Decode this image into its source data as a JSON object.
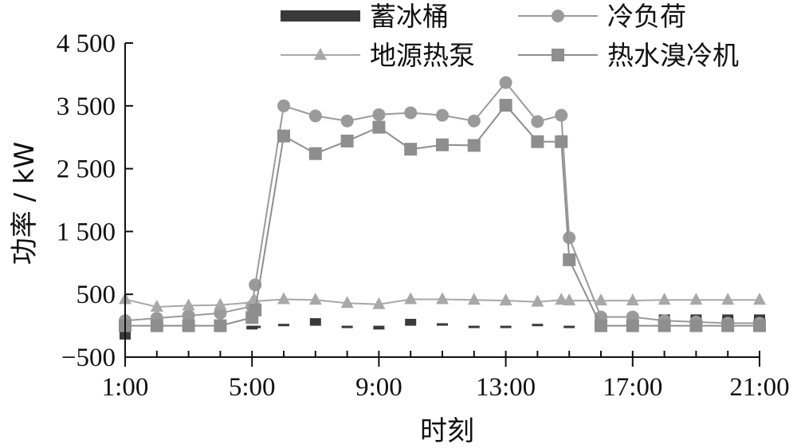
{
  "chart_data": {
    "type": "line",
    "title": "",
    "xlabel": "时刻",
    "ylabel": "功率 / kW",
    "xlim": [
      1,
      21
    ],
    "ylim": [
      -500,
      4500
    ],
    "x_ticks": [
      1,
      5,
      9,
      13,
      17,
      21
    ],
    "x_tick_labels": [
      "1:00",
      "5:00",
      "9:00",
      "13:00",
      "17:00",
      "21:00"
    ],
    "y_ticks": [
      -500,
      500,
      1500,
      2500,
      3500,
      4500
    ],
    "y_tick_labels": [
      "−500",
      "500",
      "1 500",
      "2 500",
      "3 500",
      "4 500"
    ],
    "grid": false,
    "legend_position": "top",
    "x": [
      1,
      2,
      3,
      4,
      5,
      5.1,
      6,
      7,
      8,
      9,
      10,
      11,
      12,
      13,
      14,
      14.75,
      15,
      16,
      17,
      18,
      19,
      20,
      21
    ],
    "series": [
      {
        "name": "蓄冰桶",
        "style": "bar",
        "color": "#3a3a3a",
        "values": [
          -220,
          0,
          0,
          0,
          -60,
          0,
          30,
          120,
          -10,
          -60,
          110,
          40,
          0,
          0,
          30,
          0,
          0,
          0,
          180,
          180,
          180,
          180,
          180
        ]
      },
      {
        "name": "冷负荷",
        "style": "line",
        "marker": "circle",
        "color": "#9a9a9a",
        "values": [
          80,
          120,
          160,
          200,
          310,
          650,
          3500,
          3340,
          3260,
          3360,
          3390,
          3350,
          3260,
          3870,
          3250,
          3350,
          1400,
          140,
          140,
          80,
          60,
          40,
          40
        ]
      },
      {
        "name": "地源热泵",
        "style": "line",
        "marker": "triangle",
        "color": "#a8a8a8",
        "values": [
          420,
          300,
          320,
          330,
          370,
          390,
          420,
          410,
          360,
          340,
          420,
          420,
          410,
          400,
          380,
          410,
          400,
          400,
          400,
          410,
          410,
          410,
          410
        ]
      },
      {
        "name": "热水溴冷机",
        "style": "line",
        "marker": "square",
        "color": "#8e8e8e",
        "values": [
          0,
          0,
          0,
          0,
          130,
          250,
          3020,
          2740,
          2940,
          3160,
          2810,
          2880,
          2870,
          3510,
          2930,
          2930,
          1050,
          0,
          0,
          0,
          0,
          0,
          0
        ]
      }
    ]
  }
}
